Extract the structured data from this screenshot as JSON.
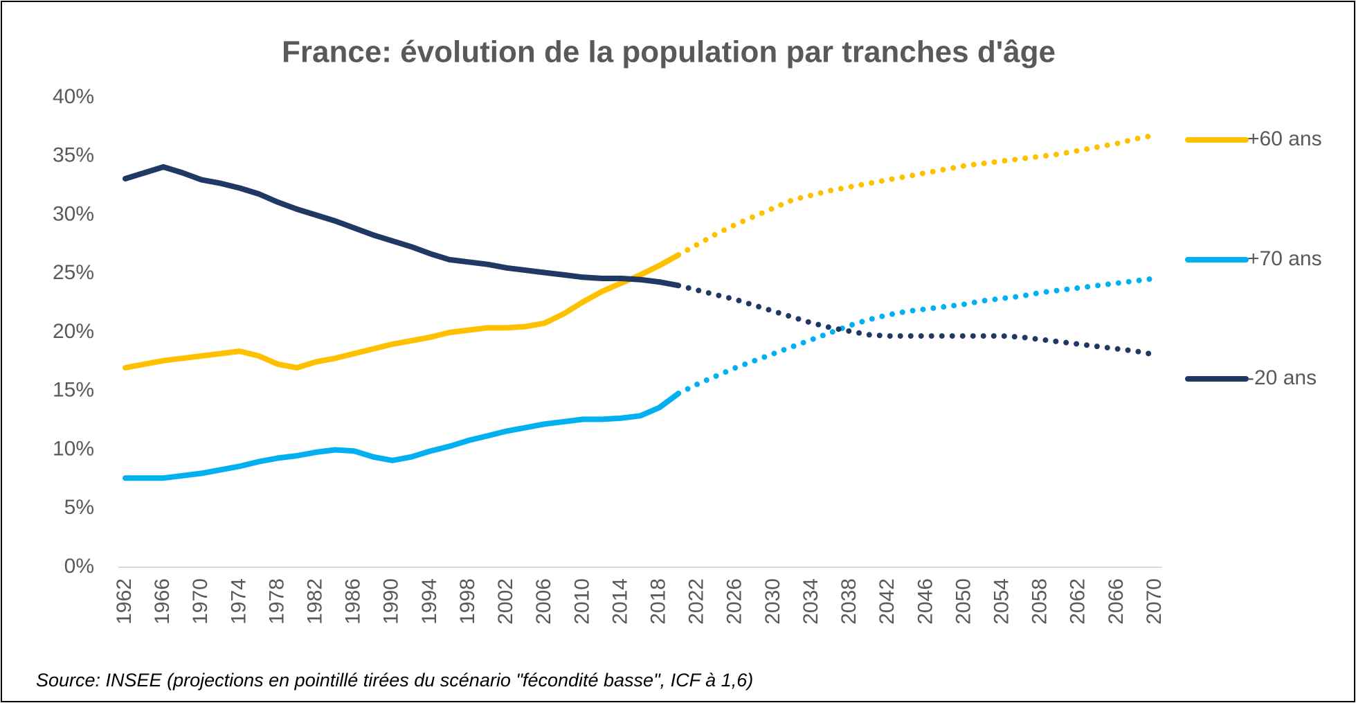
{
  "chart_data": {
    "type": "line",
    "title": "France: évolution de la population par tranches d'âge",
    "source": "Source: INSEE (projections en pointillé tirées du scénario \"fécondité basse\", ICF à 1,6)",
    "x": [
      1962,
      1964,
      1966,
      1968,
      1970,
      1972,
      1974,
      1976,
      1978,
      1980,
      1982,
      1984,
      1986,
      1988,
      1990,
      1992,
      1994,
      1996,
      1998,
      2000,
      2002,
      2004,
      2006,
      2008,
      2010,
      2012,
      2014,
      2016,
      2018,
      2020,
      2022,
      2024,
      2026,
      2028,
      2030,
      2032,
      2034,
      2036,
      2038,
      2040,
      2042,
      2044,
      2046,
      2048,
      2050,
      2052,
      2054,
      2056,
      2058,
      2060,
      2062,
      2064,
      2066,
      2068,
      2070
    ],
    "projection_start": 2020,
    "series": [
      {
        "name": "+60 ans",
        "color": "#ffc000",
        "values": [
          17.0,
          17.3,
          17.6,
          17.8,
          18.0,
          18.2,
          18.4,
          18.0,
          17.3,
          17.0,
          17.5,
          17.8,
          18.2,
          18.6,
          19.0,
          19.3,
          19.6,
          20.0,
          20.2,
          20.4,
          20.4,
          20.5,
          20.8,
          21.6,
          22.6,
          23.5,
          24.2,
          24.9,
          25.7,
          26.6,
          27.5,
          28.4,
          29.2,
          29.9,
          30.6,
          31.3,
          31.7,
          32.1,
          32.4,
          32.7,
          33.0,
          33.3,
          33.6,
          33.9,
          34.2,
          34.4,
          34.6,
          34.8,
          35.0,
          35.2,
          35.5,
          35.8,
          36.1,
          36.5,
          36.8
        ]
      },
      {
        "name": "+70 ans",
        "color": "#00b0f0",
        "values": [
          7.6,
          7.6,
          7.6,
          7.8,
          8.0,
          8.3,
          8.6,
          9.0,
          9.3,
          9.5,
          9.8,
          10.0,
          9.9,
          9.4,
          9.1,
          9.4,
          9.9,
          10.3,
          10.8,
          11.2,
          11.6,
          11.9,
          12.2,
          12.4,
          12.6,
          12.6,
          12.7,
          12.9,
          13.6,
          14.8,
          15.6,
          16.3,
          17.0,
          17.6,
          18.2,
          18.8,
          19.4,
          20.0,
          20.6,
          21.1,
          21.5,
          21.8,
          22.0,
          22.2,
          22.4,
          22.7,
          22.9,
          23.1,
          23.4,
          23.6,
          23.8,
          24.0,
          24.2,
          24.4,
          24.6
        ]
      },
      {
        "name": "-20 ans",
        "color": "#1f3864",
        "values": [
          33.1,
          33.6,
          34.1,
          33.6,
          33.0,
          32.7,
          32.3,
          31.8,
          31.1,
          30.5,
          30.0,
          29.5,
          28.9,
          28.3,
          27.8,
          27.3,
          26.7,
          26.2,
          26.0,
          25.8,
          25.5,
          25.3,
          25.1,
          24.9,
          24.7,
          24.6,
          24.6,
          24.5,
          24.3,
          24.0,
          23.6,
          23.2,
          22.8,
          22.3,
          21.8,
          21.3,
          20.8,
          20.4,
          20.1,
          19.8,
          19.7,
          19.7,
          19.7,
          19.7,
          19.7,
          19.7,
          19.7,
          19.6,
          19.4,
          19.2,
          19.0,
          18.8,
          18.6,
          18.4,
          18.1
        ]
      }
    ],
    "xlim": [
      1962,
      2070
    ],
    "xticks": [
      1962,
      1966,
      1970,
      1974,
      1978,
      1982,
      1986,
      1990,
      1994,
      1998,
      2002,
      2006,
      2010,
      2014,
      2018,
      2022,
      2026,
      2030,
      2034,
      2038,
      2042,
      2046,
      2050,
      2054,
      2058,
      2062,
      2066,
      2070
    ],
    "ylim": [
      0,
      40
    ],
    "yticks": [
      {
        "value": 0,
        "label": "0%"
      },
      {
        "value": 5,
        "label": "5%"
      },
      {
        "value": 10,
        "label": "10%"
      },
      {
        "value": 15,
        "label": "15%"
      },
      {
        "value": 20,
        "label": "20%"
      },
      {
        "value": 25,
        "label": "25%"
      },
      {
        "value": 30,
        "label": "30%"
      },
      {
        "value": 35,
        "label": "35%"
      },
      {
        "value": 40,
        "label": "40%"
      }
    ],
    "legend": "right"
  }
}
